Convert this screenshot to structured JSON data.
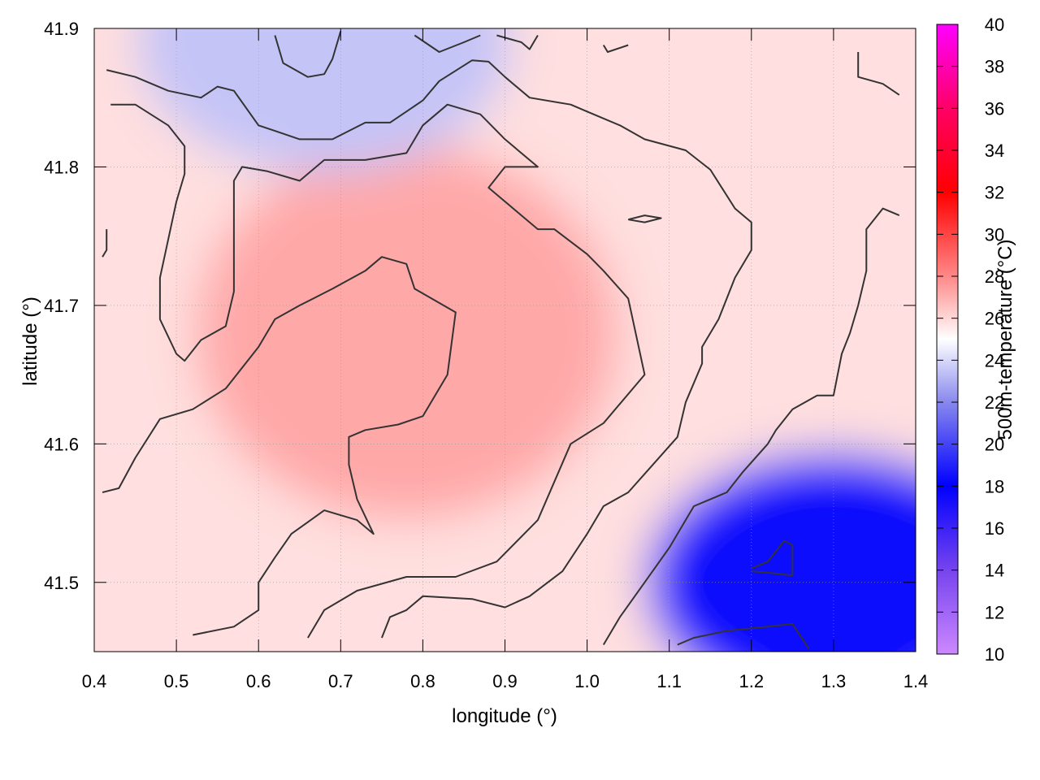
{
  "chart_data": {
    "type": "heatmap",
    "xlabel": "longitude (°)",
    "ylabel": "latitude (°)",
    "colorbar_label": "500m-temperature (°C)",
    "xlim": [
      0.4,
      1.4
    ],
    "ylim": [
      41.45,
      41.9
    ],
    "x_ticks": [
      "0.4",
      "0.5",
      "0.6",
      "0.7",
      "0.8",
      "0.9",
      "1.0",
      "1.1",
      "1.2",
      "1.3",
      "1.4"
    ],
    "y_ticks": [
      "41.5",
      "41.6",
      "41.7",
      "41.8",
      "41.9"
    ],
    "colorbar_ticks": [
      "10",
      "12",
      "14",
      "16",
      "18",
      "20",
      "22",
      "24",
      "26",
      "28",
      "30",
      "32",
      "34",
      "36",
      "38",
      "40"
    ],
    "colorbar_range": [
      10,
      40
    ],
    "grid": true,
    "colormap": [
      {
        "value": 10,
        "color": "#cc88ff"
      },
      {
        "value": 14,
        "color": "#7744ee"
      },
      {
        "value": 18,
        "color": "#0000ff"
      },
      {
        "value": 22,
        "color": "#8888ee"
      },
      {
        "value": 25,
        "color": "#ffffff"
      },
      {
        "value": 28,
        "color": "#ff8888"
      },
      {
        "value": 32,
        "color": "#ff0000"
      },
      {
        "value": 36,
        "color": "#ff0066"
      },
      {
        "value": 40,
        "color": "#ff00ff"
      }
    ],
    "temperature_regions": [
      {
        "description": "warm core",
        "center": [
          0.78,
          41.68
        ],
        "temperature": 27.2
      },
      {
        "description": "cold south-east",
        "center": [
          1.3,
          41.5
        ],
        "temperature": 18.5
      },
      {
        "description": "cool north",
        "center": [
          0.68,
          41.89
        ],
        "temperature": 23.5
      }
    ],
    "contour_lines": [
      {
        "level": 26,
        "points": [
          [
            0.41,
            41.565
          ],
          [
            0.43,
            41.568
          ],
          [
            0.45,
            41.59
          ],
          [
            0.48,
            41.618
          ],
          [
            0.52,
            41.625
          ],
          [
            0.56,
            41.64
          ],
          [
            0.6,
            41.67
          ],
          [
            0.62,
            41.69
          ],
          [
            0.65,
            41.7
          ],
          [
            0.69,
            41.712
          ],
          [
            0.73,
            41.725
          ],
          [
            0.75,
            41.735
          ],
          [
            0.78,
            41.73
          ],
          [
            0.79,
            41.712
          ],
          [
            0.84,
            41.695
          ],
          [
            0.83,
            41.65
          ],
          [
            0.8,
            41.62
          ],
          [
            0.77,
            41.614
          ],
          [
            0.73,
            41.61
          ],
          [
            0.71,
            41.605
          ],
          [
            0.71,
            41.585
          ],
          [
            0.72,
            41.56
          ],
          [
            0.74,
            41.535
          ],
          [
            0.72,
            41.545
          ],
          [
            0.68,
            41.552
          ],
          [
            0.64,
            41.535
          ],
          [
            0.62,
            41.518
          ],
          [
            0.6,
            41.5
          ],
          [
            0.6,
            41.48
          ],
          [
            0.57,
            41.468
          ],
          [
            0.52,
            41.462
          ]
        ]
      },
      {
        "level": 26,
        "points": [
          [
            0.42,
            41.845
          ],
          [
            0.45,
            41.845
          ],
          [
            0.49,
            41.83
          ],
          [
            0.51,
            41.815
          ],
          [
            0.51,
            41.795
          ],
          [
            0.5,
            41.775
          ],
          [
            0.48,
            41.72
          ],
          [
            0.48,
            41.69
          ],
          [
            0.5,
            41.665
          ],
          [
            0.51,
            41.66
          ],
          [
            0.53,
            41.675
          ],
          [
            0.56,
            41.685
          ],
          [
            0.57,
            41.71
          ],
          [
            0.57,
            41.79
          ],
          [
            0.58,
            41.8
          ],
          [
            0.61,
            41.797
          ],
          [
            0.65,
            41.79
          ],
          [
            0.68,
            41.805
          ],
          [
            0.73,
            41.805
          ],
          [
            0.78,
            41.81
          ],
          [
            0.8,
            41.83
          ],
          [
            0.83,
            41.845
          ],
          [
            0.87,
            41.838
          ],
          [
            0.9,
            41.82
          ],
          [
            0.94,
            41.8
          ],
          [
            0.9,
            41.8
          ],
          [
            0.88,
            41.785
          ],
          [
            0.94,
            41.755
          ],
          [
            0.96,
            41.755
          ],
          [
            1.0,
            41.737
          ],
          [
            1.02,
            41.725
          ],
          [
            1.05,
            41.705
          ],
          [
            1.07,
            41.65
          ],
          [
            1.02,
            41.615
          ],
          [
            0.98,
            41.6
          ],
          [
            0.94,
            41.545
          ],
          [
            0.89,
            41.515
          ],
          [
            0.84,
            41.504
          ],
          [
            0.78,
            41.504
          ],
          [
            0.72,
            41.494
          ],
          [
            0.68,
            41.48
          ],
          [
            0.66,
            41.46
          ]
        ]
      },
      {
        "level": 24,
        "points": [
          [
            0.415,
            41.87
          ],
          [
            0.45,
            41.865
          ],
          [
            0.49,
            41.855
          ],
          [
            0.53,
            41.85
          ],
          [
            0.55,
            41.858
          ],
          [
            0.57,
            41.855
          ],
          [
            0.6,
            41.83
          ],
          [
            0.62,
            41.826
          ],
          [
            0.65,
            41.82
          ],
          [
            0.69,
            41.82
          ],
          [
            0.73,
            41.832
          ],
          [
            0.76,
            41.832
          ],
          [
            0.78,
            41.84
          ],
          [
            0.8,
            41.848
          ],
          [
            0.82,
            41.862
          ],
          [
            0.86,
            41.877
          ],
          [
            0.88,
            41.876
          ],
          [
            0.9,
            41.865
          ],
          [
            0.93,
            41.85
          ],
          [
            0.98,
            41.845
          ],
          [
            1.0,
            41.84
          ],
          [
            1.04,
            41.83
          ],
          [
            1.07,
            41.82
          ],
          [
            1.12,
            41.812
          ],
          [
            1.15,
            41.798
          ],
          [
            1.18,
            41.77
          ],
          [
            1.2,
            41.76
          ],
          [
            1.2,
            41.74
          ],
          [
            1.18,
            41.72
          ],
          [
            1.16,
            41.69
          ],
          [
            1.14,
            41.67
          ],
          [
            1.14,
            41.658
          ],
          [
            1.12,
            41.63
          ],
          [
            1.11,
            41.605
          ],
          [
            1.08,
            41.585
          ],
          [
            1.05,
            41.565
          ],
          [
            1.02,
            41.555
          ],
          [
            1.0,
            41.535
          ],
          [
            0.97,
            41.508
          ],
          [
            0.93,
            41.49
          ],
          [
            0.9,
            41.482
          ],
          [
            0.86,
            41.488
          ],
          [
            0.8,
            41.49
          ],
          [
            0.78,
            41.48
          ],
          [
            0.76,
            41.475
          ],
          [
            0.75,
            41.46
          ]
        ]
      },
      {
        "level": 22,
        "points": [
          [
            1.02,
            41.455
          ],
          [
            1.04,
            41.475
          ],
          [
            1.07,
            41.5
          ],
          [
            1.1,
            41.525
          ],
          [
            1.13,
            41.555
          ],
          [
            1.17,
            41.565
          ],
          [
            1.19,
            41.58
          ],
          [
            1.22,
            41.6
          ],
          [
            1.23,
            41.61
          ],
          [
            1.25,
            41.625
          ],
          [
            1.28,
            41.635
          ],
          [
            1.3,
            41.635
          ],
          [
            1.31,
            41.665
          ],
          [
            1.32,
            41.68
          ],
          [
            1.33,
            41.7
          ],
          [
            1.34,
            41.725
          ],
          [
            1.34,
            41.755
          ],
          [
            1.36,
            41.77
          ],
          [
            1.38,
            41.765
          ]
        ]
      },
      {
        "level": 22,
        "points": [
          [
            0.62,
            41.895
          ],
          [
            0.63,
            41.875
          ],
          [
            0.66,
            41.865
          ],
          [
            0.68,
            41.867
          ],
          [
            0.69,
            41.878
          ],
          [
            0.7,
            41.898
          ]
        ]
      },
      {
        "level": 22,
        "points": [
          [
            1.33,
            41.883
          ],
          [
            1.33,
            41.865
          ],
          [
            1.36,
            41.86
          ],
          [
            1.38,
            41.852
          ]
        ]
      },
      {
        "level": 24,
        "points": [
          [
            0.79,
            41.895
          ],
          [
            0.82,
            41.883
          ],
          [
            0.85,
            41.89
          ],
          [
            0.87,
            41.895
          ]
        ]
      },
      {
        "level": 24,
        "points": [
          [
            0.89,
            41.895
          ],
          [
            0.92,
            41.89
          ],
          [
            0.93,
            41.885
          ],
          [
            0.94,
            41.895
          ]
        ]
      },
      {
        "level": 24,
        "points": [
          [
            1.02,
            41.888
          ],
          [
            1.025,
            41.883
          ],
          [
            1.05,
            41.888
          ]
        ]
      },
      {
        "level": 24,
        "points": [
          [
            1.05,
            41.762
          ],
          [
            1.07,
            41.765
          ],
          [
            1.09,
            41.763
          ],
          [
            1.07,
            41.76
          ],
          [
            1.05,
            41.762
          ]
        ]
      },
      {
        "level": 26,
        "points": [
          [
            0.415,
            41.755
          ],
          [
            0.415,
            41.74
          ],
          [
            0.41,
            41.735
          ]
        ]
      },
      {
        "level": 18,
        "points": [
          [
            1.2,
            41.51
          ],
          [
            1.22,
            41.515
          ],
          [
            1.24,
            41.53
          ],
          [
            1.25,
            41.527
          ],
          [
            1.25,
            41.505
          ],
          [
            1.22,
            41.507
          ],
          [
            1.2,
            41.508
          ]
        ]
      },
      {
        "level": 18,
        "points": [
          [
            1.11,
            41.455
          ],
          [
            1.13,
            41.46
          ],
          [
            1.17,
            41.465
          ],
          [
            1.22,
            41.468
          ],
          [
            1.25,
            41.47
          ],
          [
            1.27,
            41.452
          ]
        ]
      }
    ]
  }
}
